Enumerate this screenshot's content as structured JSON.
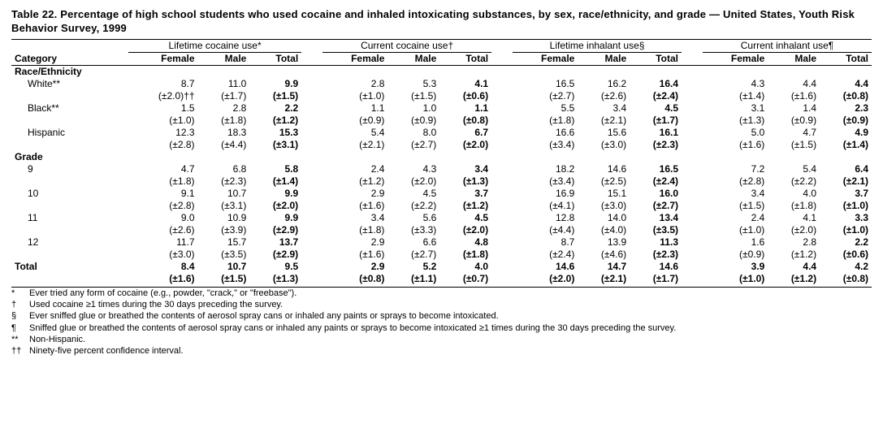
{
  "title": "Table 22. Percentage of high school students who used cocaine and inhaled intoxicating substances, by sex, race/ethnicity, and grade — United States, Youth Risk Behavior Survey, 1999",
  "category_label": "Category",
  "groups": [
    {
      "label": "Lifetime cocaine use*",
      "cols": [
        "Female",
        "Male",
        "Total"
      ]
    },
    {
      "label": "Current cocaine use†",
      "cols": [
        "Female",
        "Male",
        "Total"
      ]
    },
    {
      "label": "Lifetime inhalant use§",
      "cols": [
        "Female",
        "Male",
        "Total"
      ]
    },
    {
      "label": "Current inhalant use¶",
      "cols": [
        "Female",
        "Male",
        "Total"
      ]
    }
  ],
  "sections": [
    {
      "heading": "Race/Ethnicity",
      "rows": [
        {
          "label": "White**",
          "vals": [
            "8.7",
            "11.0",
            "9.9",
            "2.8",
            "5.3",
            "4.1",
            "16.5",
            "16.2",
            "16.4",
            "4.3",
            "4.4",
            "4.4"
          ],
          "cis": [
            "(±2.0)††",
            "(±1.7)",
            "(±1.5)",
            "(±1.0)",
            "(±1.5)",
            "(±0.6)",
            "(±2.7)",
            "(±2.6)",
            "(±2.4)",
            "(±1.4)",
            "(±1.6)",
            "(±0.8)"
          ]
        },
        {
          "label": "Black**",
          "vals": [
            "1.5",
            "2.8",
            "2.2",
            "1.1",
            "1.0",
            "1.1",
            "5.5",
            "3.4",
            "4.5",
            "3.1",
            "1.4",
            "2.3"
          ],
          "cis": [
            "(±1.0)",
            "(±1.8)",
            "(±1.2)",
            "(±0.9)",
            "(±0.9)",
            "(±0.8)",
            "(±1.8)",
            "(±2.1)",
            "(±1.7)",
            "(±1.3)",
            "(±0.9)",
            "(±0.9)"
          ]
        },
        {
          "label": "Hispanic",
          "vals": [
            "12.3",
            "18.3",
            "15.3",
            "5.4",
            "8.0",
            "6.7",
            "16.6",
            "15.6",
            "16.1",
            "5.0",
            "4.7",
            "4.9"
          ],
          "cis": [
            "(±2.8)",
            "(±4.4)",
            "(±3.1)",
            "(±2.1)",
            "(±2.7)",
            "(±2.0)",
            "(±3.4)",
            "(±3.0)",
            "(±2.3)",
            "(±1.6)",
            "(±1.5)",
            "(±1.4)"
          ]
        }
      ]
    },
    {
      "heading": "Grade",
      "rows": [
        {
          "label": "9",
          "vals": [
            "4.7",
            "6.8",
            "5.8",
            "2.4",
            "4.3",
            "3.4",
            "18.2",
            "14.6",
            "16.5",
            "7.2",
            "5.4",
            "6.4"
          ],
          "cis": [
            "(±1.8)",
            "(±2.3)",
            "(±1.4)",
            "(±1.2)",
            "(±2.0)",
            "(±1.3)",
            "(±3.4)",
            "(±2.5)",
            "(±2.4)",
            "(±2.8)",
            "(±2.2)",
            "(±2.1)"
          ]
        },
        {
          "label": "10",
          "vals": [
            "9.1",
            "10.7",
            "9.9",
            "2.9",
            "4.5",
            "3.7",
            "16.9",
            "15.1",
            "16.0",
            "3.4",
            "4.0",
            "3.7"
          ],
          "cis": [
            "(±2.8)",
            "(±3.1)",
            "(±2.0)",
            "(±1.6)",
            "(±2.2)",
            "(±1.2)",
            "(±4.1)",
            "(±3.0)",
            "(±2.7)",
            "(±1.5)",
            "(±1.8)",
            "(±1.0)"
          ]
        },
        {
          "label": "11",
          "vals": [
            "9.0",
            "10.9",
            "9.9",
            "3.4",
            "5.6",
            "4.5",
            "12.8",
            "14.0",
            "13.4",
            "2.4",
            "4.1",
            "3.3"
          ],
          "cis": [
            "(±2.6)",
            "(±3.9)",
            "(±2.9)",
            "(±1.8)",
            "(±3.3)",
            "(±2.0)",
            "(±4.4)",
            "(±4.0)",
            "(±3.5)",
            "(±1.0)",
            "(±2.0)",
            "(±1.0)"
          ]
        },
        {
          "label": "12",
          "vals": [
            "11.7",
            "15.7",
            "13.7",
            "2.9",
            "6.6",
            "4.8",
            "8.7",
            "13.9",
            "11.3",
            "1.6",
            "2.8",
            "2.2"
          ],
          "cis": [
            "(±3.0)",
            "(±3.5)",
            "(±2.9)",
            "(±1.6)",
            "(±2.7)",
            "(±1.8)",
            "(±2.4)",
            "(±4.6)",
            "(±2.3)",
            "(±0.9)",
            "(±1.2)",
            "(±0.6)"
          ]
        }
      ]
    }
  ],
  "total": {
    "label": "Total",
    "vals": [
      "8.4",
      "10.7",
      "9.5",
      "2.9",
      "5.2",
      "4.0",
      "14.6",
      "14.7",
      "14.6",
      "3.9",
      "4.4",
      "4.2"
    ],
    "cis": [
      "(±1.6)",
      "(±1.5)",
      "(±1.3)",
      "(±0.8)",
      "(±1.1)",
      "(±0.7)",
      "(±2.0)",
      "(±2.1)",
      "(±1.7)",
      "(±1.0)",
      "(±1.2)",
      "(±0.8)"
    ]
  },
  "footnotes": [
    {
      "sym": "*",
      "text": "Ever tried any form of cocaine (e.g., powder, \"crack,\" or \"freebase\")."
    },
    {
      "sym": "†",
      "text": "Used cocaine ≥1 times during the 30 days preceding the survey."
    },
    {
      "sym": "§",
      "text": "Ever sniffed glue or breathed the contents of aerosol spray cans or inhaled any paints or sprays to become intoxicated."
    },
    {
      "sym": "¶",
      "text": "Sniffed glue or breathed the contents of aerosol spray cans or inhaled any paints or sprays to become intoxicated ≥1 times during the 30 days preceding the survey."
    },
    {
      "sym": "**",
      "text": "Non-Hispanic."
    },
    {
      "sym": "††",
      "text": "Ninety-five percent confidence interval."
    }
  ]
}
